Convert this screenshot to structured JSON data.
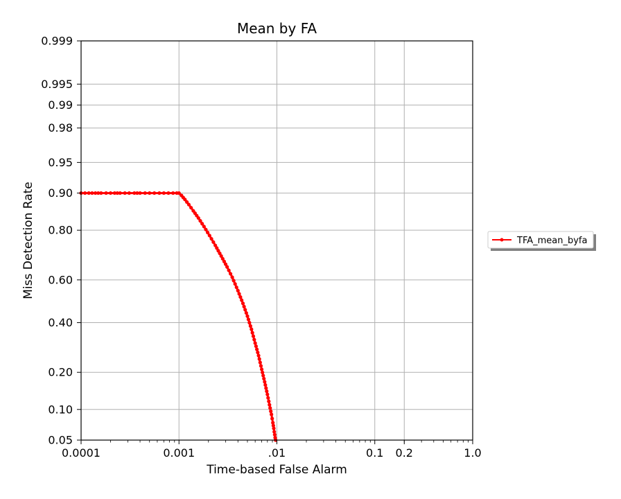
{
  "chart_data": {
    "type": "line",
    "title": "Mean by FA",
    "xlabel": "Time-based False Alarm",
    "ylabel": "Miss Detection Rate",
    "x_scale": "log",
    "y_scale": "normal-probability",
    "xlim": [
      0.0001,
      1.0
    ],
    "ylim": [
      0.05,
      0.999
    ],
    "x_ticks": [
      {
        "value": 0.0001,
        "label": "0.0001"
      },
      {
        "value": 0.001,
        "label": "0.001"
      },
      {
        "value": 0.01,
        "label": ".01"
      },
      {
        "value": 0.1,
        "label": "0.1"
      },
      {
        "value": 0.2,
        "label": "0.2"
      },
      {
        "value": 1.0,
        "label": "1.0"
      }
    ],
    "y_ticks": [
      {
        "value": 0.05,
        "label": "0.05"
      },
      {
        "value": 0.1,
        "label": "0.10"
      },
      {
        "value": 0.2,
        "label": "0.20"
      },
      {
        "value": 0.4,
        "label": "0.40"
      },
      {
        "value": 0.6,
        "label": "0.60"
      },
      {
        "value": 0.8,
        "label": "0.80"
      },
      {
        "value": 0.9,
        "label": "0.90"
      },
      {
        "value": 0.95,
        "label": "0.95"
      },
      {
        "value": 0.98,
        "label": "0.98"
      },
      {
        "value": 0.99,
        "label": "0.99"
      },
      {
        "value": 0.995,
        "label": "0.995"
      },
      {
        "value": 0.999,
        "label": "0.999"
      }
    ],
    "grid": true,
    "legend_position": "right",
    "series": [
      {
        "name": "TFA_mean_byfa",
        "color": "#ff0000",
        "marker": "dot",
        "x": [
          0.0001,
          0.00012,
          0.00014,
          0.00016,
          0.00018,
          0.0002,
          0.00022,
          0.00025,
          0.00028,
          0.00031,
          0.00035,
          0.0004,
          0.00045,
          0.0005,
          0.00056,
          0.00063,
          0.0007,
          0.00078,
          0.00087,
          0.00095,
          0.001,
          0.00106,
          0.00115,
          0.00126,
          0.0014,
          0.00158,
          0.0018,
          0.00205,
          0.00235,
          0.0027,
          0.0031,
          0.0035,
          0.004,
          0.0045,
          0.005,
          0.0055,
          0.006,
          0.0065,
          0.007,
          0.0075,
          0.008,
          0.0084,
          0.0088,
          0.0091,
          0.0093,
          0.0094,
          0.0095,
          0.0096,
          0.0097
        ],
        "y": [
          0.9,
          0.9,
          0.9,
          0.9,
          0.9,
          0.9,
          0.9,
          0.9,
          0.9,
          0.9,
          0.9,
          0.9,
          0.9,
          0.9,
          0.9,
          0.9,
          0.9,
          0.9,
          0.9,
          0.9,
          0.9,
          0.895,
          0.886,
          0.874,
          0.858,
          0.838,
          0.812,
          0.782,
          0.746,
          0.704,
          0.658,
          0.612,
          0.55,
          0.49,
          0.43,
          0.37,
          0.31,
          0.26,
          0.21,
          0.17,
          0.135,
          0.11,
          0.09,
          0.075,
          0.066,
          0.061,
          0.057,
          0.053,
          0.05
        ]
      }
    ]
  }
}
